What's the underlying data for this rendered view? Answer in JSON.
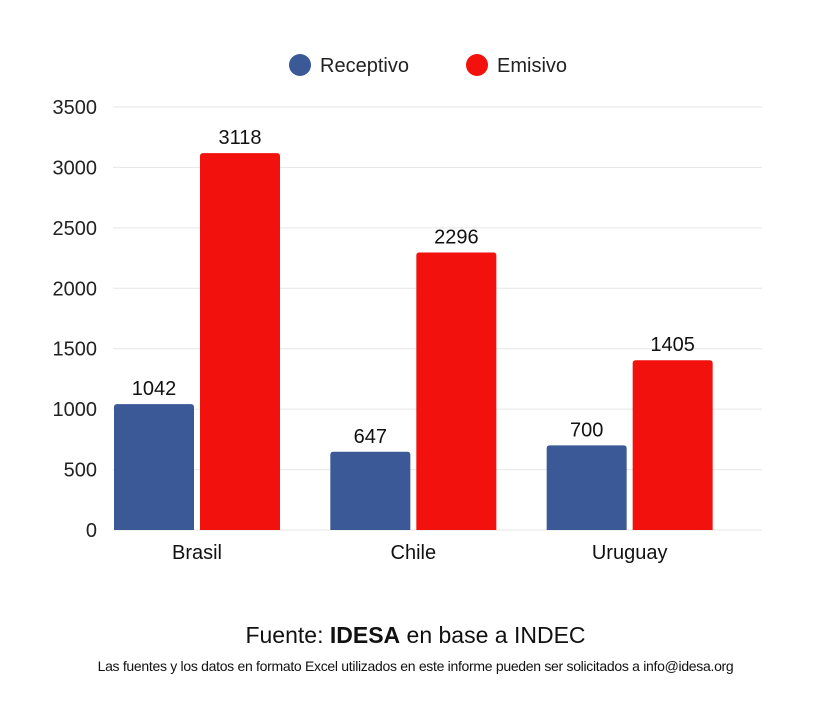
{
  "chart_data": {
    "type": "bar",
    "title": "",
    "xlabel": "",
    "ylabel": "",
    "categories": [
      "Brasil",
      "Chile",
      "Uruguay"
    ],
    "series": [
      {
        "name": "Receptivo",
        "color": "#3b5897",
        "values": [
          1042,
          647,
          700
        ]
      },
      {
        "name": "Emisivo",
        "color": "#f2110d",
        "values": [
          3118,
          2296,
          1405
        ]
      }
    ],
    "ylim": [
      0,
      3500
    ],
    "yticks": [
      0,
      500,
      1000,
      1500,
      2000,
      2500,
      3000,
      3500
    ],
    "grid": true,
    "legend": "top-center"
  },
  "footer": {
    "source_prefix": "Fuente: ",
    "source_bold": "IDESA",
    "source_suffix": " en base a INDEC",
    "note": "Las fuentes y los datos en formato Excel utilizados en este informe pueden ser solicitados a info@idesa.org"
  }
}
